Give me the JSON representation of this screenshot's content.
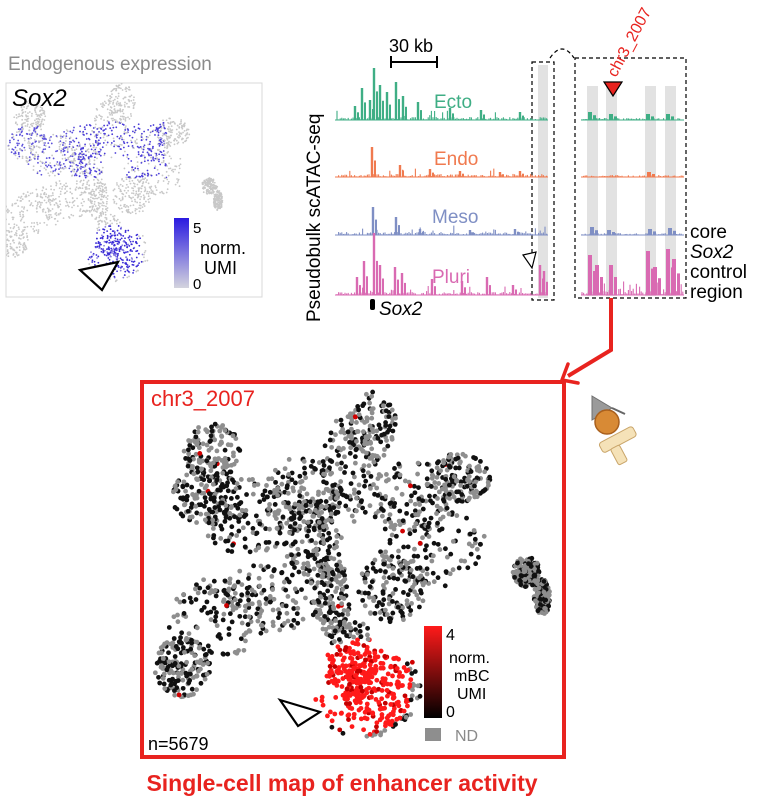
{
  "endogenous": {
    "title": "Endogenous expression",
    "gene": "Sox2",
    "legend": {
      "max": "5",
      "min": "0",
      "label_line1": "norm.",
      "label_line2": "UMI"
    }
  },
  "atac": {
    "ylabel": "Pseudobulk scATAC-seq",
    "scale_label": "30 kb",
    "gene_label": "Sox2",
    "tracks": [
      {
        "name": "Ecto",
        "color": "#3fae85"
      },
      {
        "name": "Endo",
        "color": "#f07a4f"
      },
      {
        "name": "Meso",
        "color": "#7f8fc4"
      },
      {
        "name": "Pluri",
        "color": "#d96ab2"
      }
    ],
    "enhancer_label": "chr3_2007",
    "region_label_lines": [
      "core",
      "Sox2",
      "control",
      "region"
    ]
  },
  "enhancer_map": {
    "title": "chr3_2007",
    "n_label": "n=5679",
    "legend": {
      "max": "4",
      "min": "0",
      "label_lines": [
        "norm.",
        "mBC",
        "UMI"
      ],
      "nd_label": "ND"
    },
    "caption": "Single-cell map of enhancer activity"
  },
  "colors": {
    "accent_red": "#e8231f",
    "expression_blue": "#3a2bd6",
    "cell_gray": "#c8c8c8",
    "map_gray": "#8e8e8e",
    "cell_black": "#111111",
    "active_red": "#ff1a1a"
  }
}
